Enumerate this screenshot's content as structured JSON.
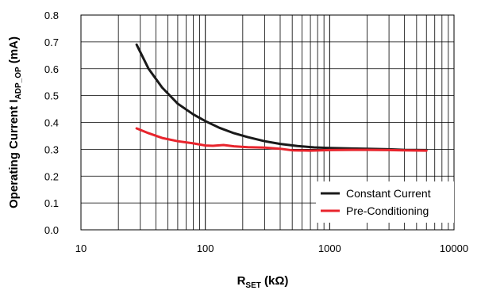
{
  "chart_data": {
    "type": "line",
    "x_scale": "log",
    "xlim": [
      10,
      10000
    ],
    "ylim": [
      0,
      0.8
    ],
    "x_ticks": [
      10,
      100,
      1000,
      10000
    ],
    "x_tick_labels": [
      "10",
      "100",
      "1000",
      "10000"
    ],
    "y_ticks": [
      0,
      0.1,
      0.2,
      0.3,
      0.4,
      0.5,
      0.6,
      0.7,
      0.8
    ],
    "y_tick_labels": [
      "0.0",
      "0.1",
      "0.2",
      "0.3",
      "0.4",
      "0.5",
      "0.6",
      "0.7",
      "0.8"
    ],
    "grid": true,
    "legend_position": "bottom-right",
    "xlabel": {
      "main": "R",
      "sub": "SET",
      "rest": " (kΩ)"
    },
    "ylabel": {
      "main": "Operating Current I",
      "sub": "ADP_OP",
      "rest": " (mA)"
    },
    "series": [
      {
        "name": "Constant Current",
        "color": "#1a1a1a",
        "x": [
          28,
          35,
          45,
          60,
          80,
          100,
          130,
          170,
          220,
          300,
          400,
          550,
          750,
          1000,
          1500,
          2000,
          3000,
          4000,
          6000
        ],
        "y": [
          0.69,
          0.6,
          0.53,
          0.47,
          0.43,
          0.405,
          0.38,
          0.36,
          0.345,
          0.33,
          0.32,
          0.312,
          0.307,
          0.305,
          0.303,
          0.302,
          0.3,
          0.298,
          0.297
        ]
      },
      {
        "name": "Pre-Conditioning",
        "color": "#e8242c",
        "x": [
          28,
          35,
          45,
          60,
          80,
          100,
          115,
          140,
          170,
          220,
          300,
          400,
          500,
          700,
          1000,
          1500,
          2000,
          3000,
          4000,
          6000
        ],
        "y": [
          0.378,
          0.36,
          0.342,
          0.33,
          0.322,
          0.314,
          0.313,
          0.316,
          0.311,
          0.308,
          0.306,
          0.302,
          0.296,
          0.295,
          0.297,
          0.298,
          0.298,
          0.297,
          0.296,
          0.295
        ]
      }
    ]
  }
}
